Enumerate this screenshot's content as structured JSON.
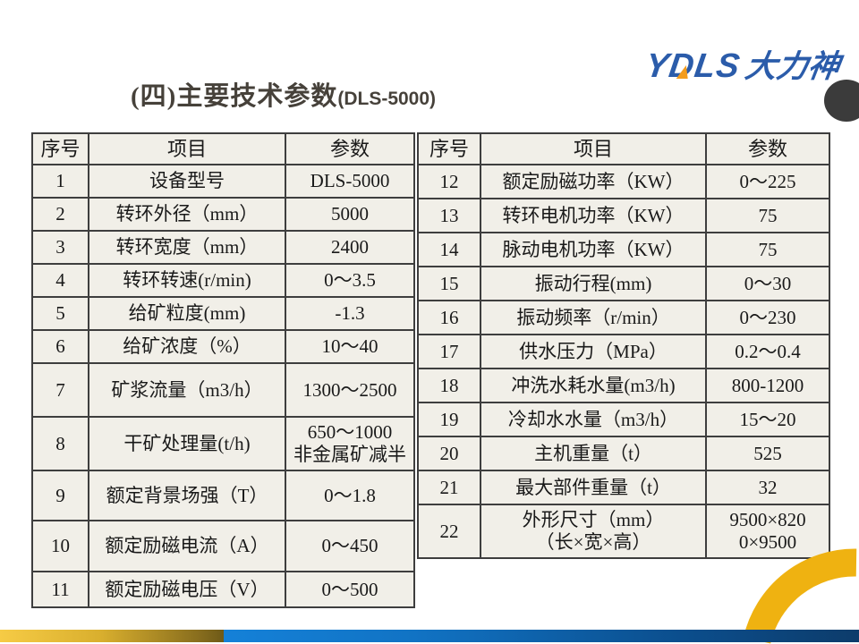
{
  "slide": {
    "title_main": "(四)主要技术参数",
    "title_sub": "(DLS-5000)",
    "logo": {
      "latin": "YDLS",
      "cjk": "大力神"
    },
    "colors": {
      "logo_blue": "#2b5caa",
      "logo_orange": "#f39c1d",
      "table_bg": "#f1efe8",
      "table_border": "#3e3e3e",
      "footer_gold": "#d9af2e",
      "footer_blue": "#1173c4",
      "arc_gold": "#efb211",
      "corner_dark": "#3b3b3b"
    }
  },
  "tables": {
    "headers": [
      "序号",
      "项目",
      "参数"
    ],
    "left": {
      "rows": [
        {
          "no": "1",
          "item": "设备型号",
          "param": "DLS-5000"
        },
        {
          "no": "2",
          "item": "转环外径（mm）",
          "param": "5000"
        },
        {
          "no": "3",
          "item": "转环宽度（mm）",
          "param": "2400"
        },
        {
          "no": "4",
          "item": "转环转速(r/min)",
          "param": "0～3.5"
        },
        {
          "no": "5",
          "item": "给矿粒度(mm)",
          "param": "-1.3"
        },
        {
          "no": "6",
          "item": "给矿浓度（%）",
          "param": "10～40"
        },
        {
          "no": "7",
          "item": "矿浆流量（m3/h）",
          "param": "1300～2500"
        },
        {
          "no": "8",
          "item": "干矿处理量(t/h)",
          "param": "650～1000\n非金属矿减半"
        },
        {
          "no": "9",
          "item": "额定背景场强（T）",
          "param": "0～1.8"
        },
        {
          "no": "10",
          "item": "额定励磁电流（A）",
          "param": "0～450"
        },
        {
          "no": "11",
          "item": "额定励磁电压（V）",
          "param": "0～500"
        }
      ]
    },
    "right": {
      "rows": [
        {
          "no": "12",
          "item": "额定励磁功率（KW）",
          "param": "0～225"
        },
        {
          "no": "13",
          "item": "转环电机功率（KW）",
          "param": "75"
        },
        {
          "no": "14",
          "item": "脉动电机功率（KW）",
          "param": "75"
        },
        {
          "no": "15",
          "item": "振动行程(mm)",
          "param": "0～30"
        },
        {
          "no": "16",
          "item": "振动频率（r/min）",
          "param": "0～230"
        },
        {
          "no": "17",
          "item": "供水压力（MPa）",
          "param": "0.2～0.4"
        },
        {
          "no": "18",
          "item": "冲洗水耗水量(m3/h)",
          "param": "800-1200"
        },
        {
          "no": "19",
          "item": "冷却水水量（m3/h）",
          "param": "15～20"
        },
        {
          "no": "20",
          "item": "主机重量（t）",
          "param": "525"
        },
        {
          "no": "21",
          "item": "最大部件重量（t）",
          "param": "32"
        },
        {
          "no": "22",
          "item": "外形尺寸（mm）\n（长×宽×高）",
          "param": "9500×820\n0×9500"
        }
      ]
    }
  }
}
